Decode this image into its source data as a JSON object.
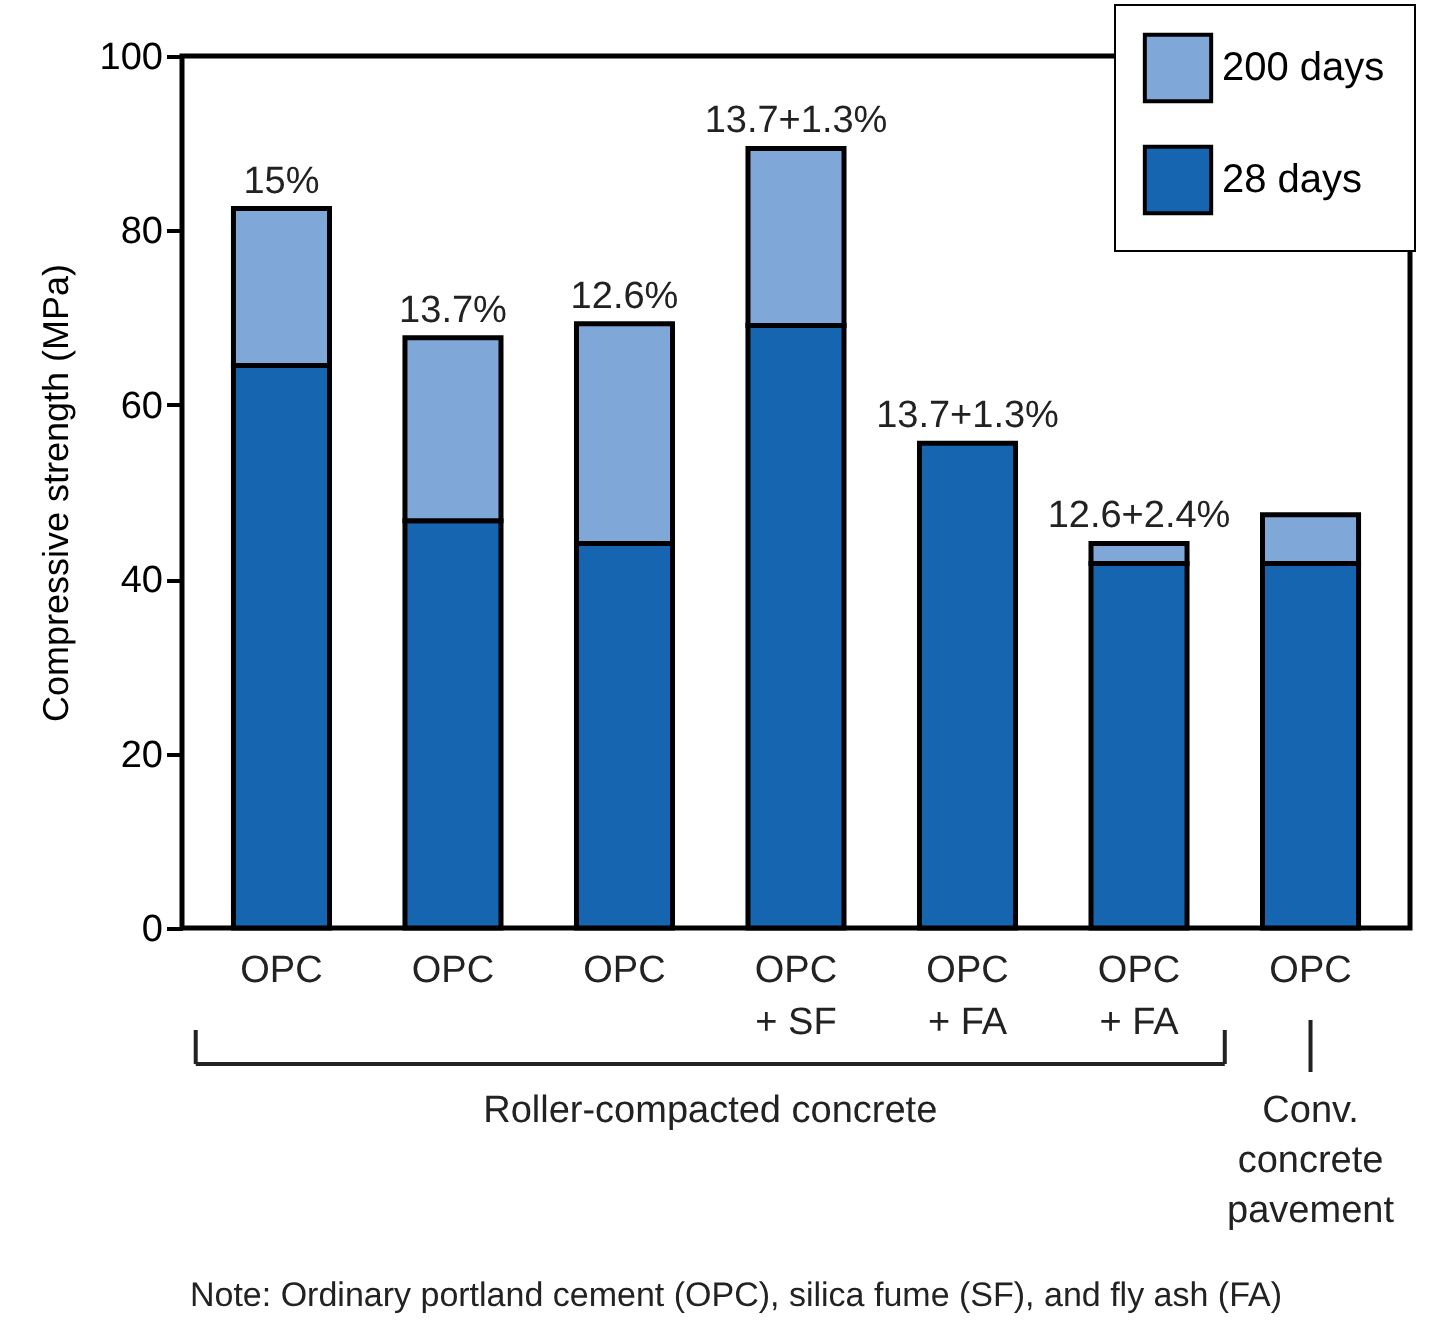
{
  "chart_data": {
    "type": "bar",
    "stacked": true,
    "ylabel": "Compressive strength (MPa)",
    "categories": [
      "OPC",
      "OPC",
      "OPC",
      "OPC\n+ SF",
      "OPC\n+ FA",
      "OPC\n+ FA",
      "OPC"
    ],
    "series": [
      {
        "name": "28 days",
        "color": "#1565b0",
        "values": [
          64.5,
          46.7,
          44.1,
          69.1,
          55.6,
          41.8,
          41.8
        ]
      },
      {
        "name": "200 days",
        "color": "#7fa7d8",
        "values": [
          18,
          21,
          25.2,
          20.3,
          null,
          2.3,
          5.6
        ]
      }
    ],
    "ylim": [
      0,
      100
    ],
    "yticks": [
      0,
      20,
      40,
      60,
      80,
      100
    ],
    "grid": false,
    "legend": "top right",
    "annotations": [
      {
        "text": "15%",
        "y": 82.5
      },
      {
        "text": "13.7%",
        "y": 67.7
      },
      {
        "text": "12.6%",
        "y": 69.3
      },
      {
        "text": "13.7+1.3%",
        "y": 89.4
      },
      {
        "text": "13.7+1.3%",
        "y": 55.6
      },
      {
        "text": "12.6+2.4%",
        "y": 44.1
      },
      "Roller-compacted concrete",
      "Conv.\nconcrete\npavement",
      "Note: Ordinary portland cement (OPC), silica fume (SF), and fly ash (FA)"
    ]
  }
}
